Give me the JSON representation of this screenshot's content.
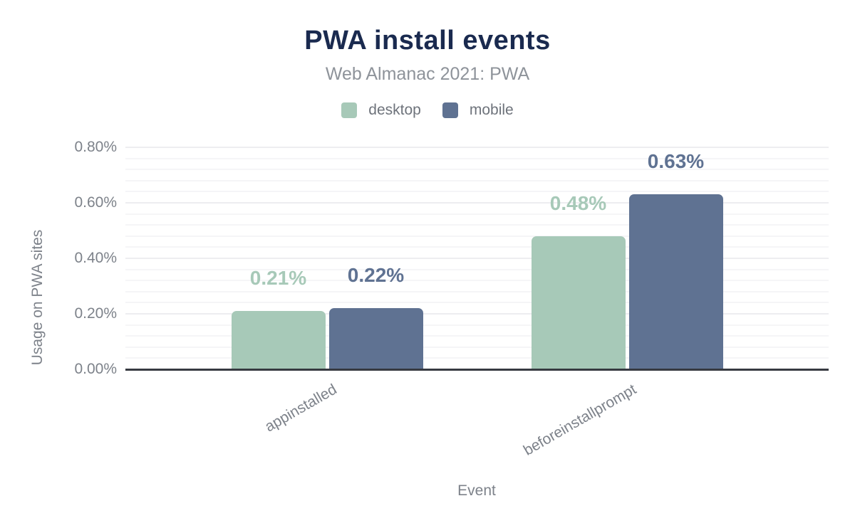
{
  "chart_data": {
    "type": "bar",
    "title": "PWA install events",
    "subtitle": "Web Almanac 2021: PWA",
    "xlabel": "Event",
    "ylabel": "Usage on PWA sites",
    "categories": [
      "appinstalled",
      "beforeinstallprompt"
    ],
    "series": [
      {
        "name": "desktop",
        "color": "#a7c9b8",
        "values": [
          0.21,
          0.48
        ],
        "value_labels": [
          "0.21%",
          "0.48%"
        ]
      },
      {
        "name": "mobile",
        "color": "#5f7292",
        "values": [
          0.22,
          0.63
        ],
        "value_labels": [
          "0.22%",
          "0.63%"
        ]
      }
    ],
    "y_axis": {
      "min": 0,
      "max": 0.8,
      "major_step": 0.2,
      "minor_step": 0.04,
      "tick_labels": [
        "0.00%",
        "0.20%",
        "0.40%",
        "0.60%",
        "0.80%"
      ]
    },
    "legend_position": "top",
    "grid": "on"
  },
  "colors": {
    "title": "#1a2a4f",
    "subtitle": "#8e939a",
    "axis_text": "#7d828a",
    "legend_text": "#6e737b",
    "axis_line": "#373a41",
    "gridline_major": "#ededf0",
    "gridline_minor": "#f5f5f7",
    "background": "#ffffff"
  }
}
